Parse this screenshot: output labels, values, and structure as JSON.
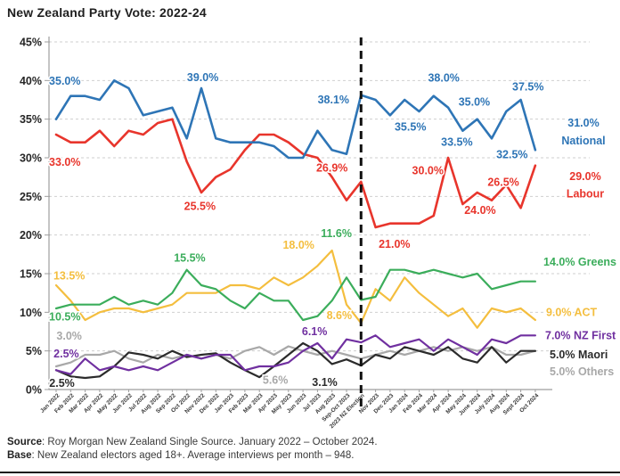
{
  "title": "New Zealand Party Vote: 2022-24",
  "footer": {
    "source_label": "Source",
    "source_text": ": Roy Morgan New Zealand Single Source. January 2022 – October 2024.",
    "base_label": "Base",
    "base_text": ": New Zealand electors aged 18+. Average interviews per month – 948."
  },
  "chart_data": {
    "type": "line",
    "title": "New Zealand Party Vote: 2022-24",
    "ylim": [
      0,
      45
    ],
    "y_tick_step": 5,
    "y_tick_suffix": "%",
    "grid": true,
    "legend_position": "right-end-labels",
    "election_index": 21,
    "election_line": {
      "style": "dashed",
      "color": "#111111"
    },
    "categories": [
      "Jan 2022",
      "Feb 2022",
      "Mar 2022",
      "Apr 2022",
      "May 2022",
      "Jun 2022",
      "Jul 2022",
      "Aug 2022",
      "Sep 2022",
      "Oct 2022",
      "Nov 2022",
      "Dec 2022",
      "Jan 2023",
      "Feb 2023",
      "Mar 2023",
      "Apr 2023",
      "May 2023",
      "Jun 2023",
      "Jul 2023",
      "Aug 2023",
      "Sep-Oct 2023",
      "2023 NZ Election",
      "Nov 2023",
      "Dec 2023",
      "Jan 2024",
      "Feb 2024",
      "Mar 2024",
      "Apr 2024",
      "May 2024",
      "June 2024",
      "July 2024",
      "Aug 2024",
      "Sept 2024",
      "Oct 2024"
    ],
    "series": [
      {
        "name": "Others",
        "color": "#A8A8A8",
        "values": [
          3.0,
          3.5,
          4.5,
          4.5,
          5.0,
          4.0,
          3.5,
          4.5,
          4.0,
          4.5,
          4.0,
          4.5,
          4.0,
          5.0,
          5.5,
          4.5,
          5.6,
          5.0,
          4.5,
          5.0,
          4.5,
          4.0,
          4.5,
          5.0,
          4.5,
          5.0,
          5.5,
          5.0,
          5.5,
          5.0,
          5.5,
          4.5,
          4.5,
          5.0
        ]
      },
      {
        "name": "Maori",
        "color": "#2B2B2B",
        "values": [
          2.5,
          1.7,
          1.5,
          1.7,
          3.0,
          4.8,
          4.5,
          4.0,
          5.0,
          4.2,
          4.5,
          4.7,
          3.5,
          2.5,
          1.6,
          3.0,
          4.5,
          6.0,
          5.0,
          3.3,
          3.9,
          3.1,
          4.5,
          4.0,
          5.5,
          5.0,
          4.5,
          5.5,
          4.0,
          3.5,
          5.5,
          3.5,
          5.0,
          5.0
        ]
      },
      {
        "name": "NZ First",
        "color": "#7030A0",
        "values": [
          2.5,
          2.0,
          4.0,
          2.5,
          3.0,
          2.5,
          3.0,
          2.5,
          3.5,
          4.5,
          4.0,
          4.5,
          4.5,
          2.5,
          3.0,
          3.0,
          3.5,
          5.0,
          6.0,
          4.0,
          6.5,
          6.1,
          7.0,
          5.5,
          6.0,
          6.5,
          5.0,
          6.5,
          5.5,
          4.5,
          6.5,
          6.0,
          7.0,
          7.0
        ]
      },
      {
        "name": "ACT",
        "color": "#F4BE3E",
        "values": [
          13.5,
          11.5,
          9.0,
          10.0,
          10.5,
          10.5,
          10.0,
          10.5,
          11.0,
          12.5,
          12.5,
          12.5,
          13.5,
          13.5,
          13.0,
          14.5,
          13.5,
          14.5,
          16.0,
          18.0,
          11.0,
          8.6,
          13.0,
          11.5,
          14.5,
          12.5,
          11.0,
          9.5,
          10.5,
          8.0,
          10.5,
          10.0,
          10.5,
          9.0
        ]
      },
      {
        "name": "Greens",
        "color": "#3BAD5B",
        "values": [
          10.5,
          11.0,
          11.0,
          11.0,
          12.0,
          11.0,
          11.5,
          11.0,
          12.5,
          15.5,
          13.5,
          13.0,
          11.5,
          10.5,
          12.5,
          11.5,
          11.5,
          9.0,
          9.5,
          11.5,
          14.5,
          11.6,
          12.0,
          15.5,
          15.5,
          15.0,
          15.5,
          15.0,
          14.5,
          15.0,
          13.0,
          13.5,
          14.0,
          14.0
        ]
      },
      {
        "name": "Labour",
        "color": "#E8352C",
        "values": [
          33.0,
          32.0,
          32.0,
          33.5,
          31.5,
          33.5,
          33.0,
          34.5,
          35.0,
          29.5,
          25.5,
          27.5,
          28.5,
          31.0,
          33.0,
          33.0,
          32.0,
          30.5,
          30.0,
          27.5,
          24.5,
          26.9,
          21.0,
          21.5,
          21.5,
          21.5,
          22.5,
          30.0,
          24.0,
          25.5,
          24.5,
          26.5,
          23.5,
          29.0
        ]
      },
      {
        "name": "National",
        "color": "#2E75B6",
        "values": [
          35.0,
          38.0,
          38.0,
          37.5,
          40.0,
          39.0,
          35.5,
          36.0,
          36.5,
          32.5,
          39.0,
          32.5,
          32.0,
          32.0,
          32.0,
          31.5,
          30.0,
          30.0,
          33.5,
          31.0,
          30.5,
          38.1,
          37.5,
          35.5,
          37.5,
          36.0,
          38.0,
          36.5,
          33.5,
          35.0,
          32.5,
          36.0,
          37.5,
          31.0
        ]
      }
    ],
    "annotations": [
      {
        "text": "35.0%",
        "series": "National",
        "xi": 0.6,
        "v": 39.9
      },
      {
        "text": "39.0%",
        "series": "National",
        "xi": 10.1,
        "v": 40.4
      },
      {
        "text": "38.1%",
        "series": "National",
        "xi": 19.1,
        "v": 37.5
      },
      {
        "text": "35.5%",
        "series": "National",
        "xi": 24.4,
        "v": 34.0
      },
      {
        "text": "38.0%",
        "series": "National",
        "xi": 26.7,
        "v": 40.3
      },
      {
        "text": "35.0%",
        "series": "National",
        "xi": 28.8,
        "v": 37.2
      },
      {
        "text": "33.5%",
        "series": "National",
        "xi": 27.6,
        "v": 32.0
      },
      {
        "text": "32.5%",
        "series": "National",
        "xi": 31.4,
        "v": 30.4
      },
      {
        "text": "37.5%",
        "series": "National",
        "xi": 32.5,
        "v": 39.2
      },
      {
        "text": "33.0%",
        "series": "Labour",
        "xi": 0.6,
        "v": 29.4
      },
      {
        "text": "25.5%",
        "series": "Labour",
        "xi": 9.9,
        "v": 23.7
      },
      {
        "text": "26.9%",
        "series": "Labour",
        "xi": 19.0,
        "v": 28.7
      },
      {
        "text": "21.0%",
        "series": "Labour",
        "xi": 23.3,
        "v": 18.8
      },
      {
        "text": "30.0%",
        "series": "Labour",
        "xi": 25.6,
        "v": 28.3
      },
      {
        "text": "24.0%",
        "series": "Labour",
        "xi": 29.2,
        "v": 23.2
      },
      {
        "text": "26.5%",
        "series": "Labour",
        "xi": 30.8,
        "v": 26.8
      },
      {
        "text": "10.5%",
        "series": "Greens",
        "xi": 0.6,
        "v": 9.4
      },
      {
        "text": "15.5%",
        "series": "Greens",
        "xi": 9.2,
        "v": 17.0
      },
      {
        "text": "11.6%",
        "series": "Greens",
        "xi": 19.3,
        "v": 20.2
      },
      {
        "text": "13.5%",
        "series": "ACT",
        "xi": 0.9,
        "v": 14.7
      },
      {
        "text": "18.0%",
        "series": "ACT",
        "xi": 16.7,
        "v": 18.7
      },
      {
        "text": "8.6%",
        "series": "ACT",
        "xi": 19.5,
        "v": 9.6
      },
      {
        "text": "2.5%",
        "series": "NZ First",
        "xi": 0.7,
        "v": 4.6
      },
      {
        "text": "6.1%",
        "series": "NZ First",
        "xi": 17.8,
        "v": 7.5
      },
      {
        "text": "2.5%",
        "series": "Maori",
        "xi": 0.4,
        "v": 0.8
      },
      {
        "text": "3.1%",
        "series": "Maori",
        "xi": 18.5,
        "v": 0.9
      },
      {
        "text": "3.0%",
        "series": "Others",
        "xi": 0.9,
        "v": 6.9
      },
      {
        "text": "5.6%",
        "series": "Others",
        "xi": 15.1,
        "v": 1.2
      }
    ],
    "end_labels": [
      {
        "series": "National",
        "x": 655,
        "anchor": "middle",
        "lines": [
          {
            "text": "31.0%",
            "v": 34.5
          },
          {
            "text": "National",
            "v": 32.2
          }
        ]
      },
      {
        "series": "Labour",
        "x": 657,
        "anchor": "middle",
        "lines": [
          {
            "text": "29.0%",
            "v": 27.6
          },
          {
            "text": "Labour",
            "v": 25.3
          }
        ]
      },
      {
        "series": "Greens",
        "x": 610,
        "anchor": "start",
        "lines": [
          {
            "text": "14.0% Greens",
            "v": 16.5
          }
        ]
      },
      {
        "series": "ACT",
        "x": 613,
        "anchor": "start",
        "lines": [
          {
            "text": "9.0% ACT",
            "v": 10.0
          }
        ]
      },
      {
        "series": "NZ First",
        "x": 612,
        "anchor": "start",
        "lines": [
          {
            "text": "7.0% NZ First",
            "v": 7.0
          }
        ]
      },
      {
        "series": "Maori",
        "x": 617,
        "anchor": "start",
        "lines": [
          {
            "text": "5.0% Maori",
            "v": 4.5
          }
        ]
      },
      {
        "series": "Others",
        "x": 617,
        "anchor": "start",
        "lines": [
          {
            "text": "5.0% Others",
            "v": 2.3
          }
        ]
      }
    ]
  }
}
